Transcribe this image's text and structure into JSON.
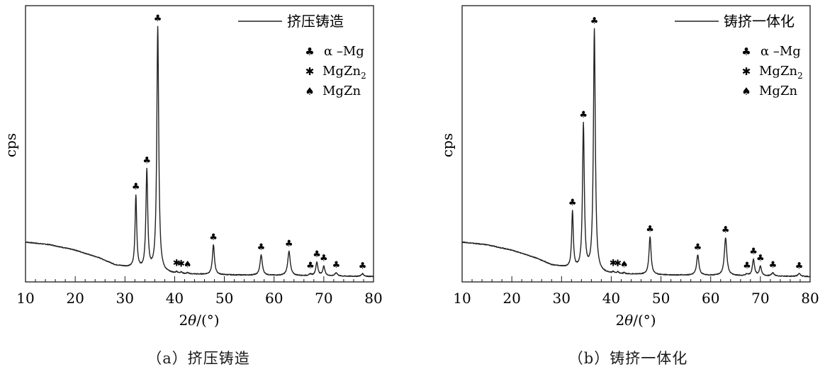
{
  "chart_data": [
    {
      "type": "line",
      "caption": "（a）挤压铸造",
      "series": [
        {
          "name": "挤压铸造"
        }
      ],
      "ylabel": "cps",
      "xlabel_prefix": "2",
      "xlabel_theta": "θ",
      "xlabel_suffix": "/(°)",
      "xlim": [
        10,
        80
      ],
      "xticks": [
        "10",
        "20",
        "30",
        "40",
        "50",
        "60",
        "70",
        "80"
      ],
      "legend": {
        "position": "top-right",
        "phases": [
          {
            "symbol": "♣",
            "label": "α –Mg"
          },
          {
            "symbol": "✱",
            "label_main": "MgZn",
            "label_sub": "2"
          },
          {
            "symbol": "♠",
            "label": "MgZn"
          }
        ]
      },
      "background": [
        [
          10,
          0.14
        ],
        [
          15,
          0.13
        ],
        [
          20,
          0.11
        ],
        [
          25,
          0.08
        ],
        [
          28,
          0.055
        ],
        [
          31,
          0.045
        ],
        [
          35,
          0.03
        ],
        [
          40,
          0.022
        ],
        [
          45,
          0.02
        ],
        [
          50,
          0.018
        ],
        [
          55,
          0.017
        ],
        [
          60,
          0.016
        ],
        [
          65,
          0.015
        ],
        [
          70,
          0.014
        ],
        [
          75,
          0.013
        ],
        [
          80,
          0.012
        ]
      ],
      "peaks": [
        {
          "x": 32.2,
          "h": 0.27,
          "w": 0.2,
          "symbol": "♣"
        },
        {
          "x": 34.4,
          "h": 0.37,
          "w": 0.22,
          "symbol": "♣"
        },
        {
          "x": 36.6,
          "h": 0.91,
          "w": 0.23,
          "symbol": "♣"
        },
        {
          "x": 40.4,
          "h": 0.006,
          "w": 0.2,
          "symbol": "✱"
        },
        {
          "x": 41.3,
          "h": 0.006,
          "w": 0.2,
          "symbol": "✱"
        },
        {
          "x": 42.6,
          "h": 0.004,
          "w": 0.2,
          "symbol": "♠"
        },
        {
          "x": 47.8,
          "h": 0.11,
          "w": 0.25,
          "symbol": "♣"
        },
        {
          "x": 57.4,
          "h": 0.075,
          "w": 0.28,
          "symbol": "♣"
        },
        {
          "x": 63.0,
          "h": 0.09,
          "w": 0.3,
          "symbol": "♣"
        },
        {
          "x": 67.3,
          "h": 0.006,
          "w": 0.25,
          "symbol": "♣"
        },
        {
          "x": 68.6,
          "h": 0.05,
          "w": 0.26,
          "symbol": "♣"
        },
        {
          "x": 70.0,
          "h": 0.035,
          "w": 0.26,
          "symbol": "♣"
        },
        {
          "x": 72.5,
          "h": 0.012,
          "w": 0.3,
          "symbol": "♣"
        },
        {
          "x": 77.8,
          "h": 0.01,
          "w": 0.3,
          "symbol": "♣"
        }
      ]
    },
    {
      "type": "line",
      "caption": "（b）铸挤一体化",
      "series": [
        {
          "name": "铸挤一体化"
        }
      ],
      "ylabel": "cps",
      "xlabel_prefix": "2",
      "xlabel_theta": "θ",
      "xlabel_suffix": "/(°)",
      "xlim": [
        10,
        80
      ],
      "xticks": [
        "10",
        "20",
        "30",
        "40",
        "50",
        "60",
        "70",
        "80"
      ],
      "legend": {
        "position": "top-right",
        "phases": [
          {
            "symbol": "♣",
            "label": "α –Mg"
          },
          {
            "symbol": "✱",
            "label_main": "MgZn",
            "label_sub": "2"
          },
          {
            "symbol": "♠",
            "label": "MgZn"
          }
        ]
      },
      "background": [
        [
          10,
          0.14
        ],
        [
          15,
          0.13
        ],
        [
          20,
          0.11
        ],
        [
          25,
          0.08
        ],
        [
          28,
          0.055
        ],
        [
          31,
          0.045
        ],
        [
          35,
          0.03
        ],
        [
          40,
          0.022
        ],
        [
          45,
          0.02
        ],
        [
          50,
          0.018
        ],
        [
          55,
          0.017
        ],
        [
          60,
          0.016
        ],
        [
          65,
          0.015
        ],
        [
          70,
          0.014
        ],
        [
          75,
          0.013
        ],
        [
          80,
          0.012
        ]
      ],
      "peaks": [
        {
          "x": 32.2,
          "h": 0.21,
          "w": 0.2,
          "symbol": "♣"
        },
        {
          "x": 34.4,
          "h": 0.54,
          "w": 0.22,
          "symbol": "♣"
        },
        {
          "x": 36.6,
          "h": 0.9,
          "w": 0.23,
          "symbol": "♣"
        },
        {
          "x": 40.4,
          "h": 0.006,
          "w": 0.2,
          "symbol": "✱"
        },
        {
          "x": 41.3,
          "h": 0.006,
          "w": 0.2,
          "symbol": "✱"
        },
        {
          "x": 42.6,
          "h": 0.004,
          "w": 0.2,
          "symbol": "♠"
        },
        {
          "x": 47.8,
          "h": 0.14,
          "w": 0.25,
          "symbol": "♣"
        },
        {
          "x": 57.4,
          "h": 0.075,
          "w": 0.28,
          "symbol": "♣"
        },
        {
          "x": 63.0,
          "h": 0.14,
          "w": 0.3,
          "symbol": "♣"
        },
        {
          "x": 67.3,
          "h": 0.006,
          "w": 0.25,
          "symbol": "♣"
        },
        {
          "x": 68.6,
          "h": 0.06,
          "w": 0.26,
          "symbol": "♣"
        },
        {
          "x": 70.0,
          "h": 0.035,
          "w": 0.26,
          "symbol": "♣"
        },
        {
          "x": 72.5,
          "h": 0.012,
          "w": 0.3,
          "symbol": "♣"
        },
        {
          "x": 77.8,
          "h": 0.01,
          "w": 0.3,
          "symbol": "♣"
        }
      ]
    }
  ]
}
